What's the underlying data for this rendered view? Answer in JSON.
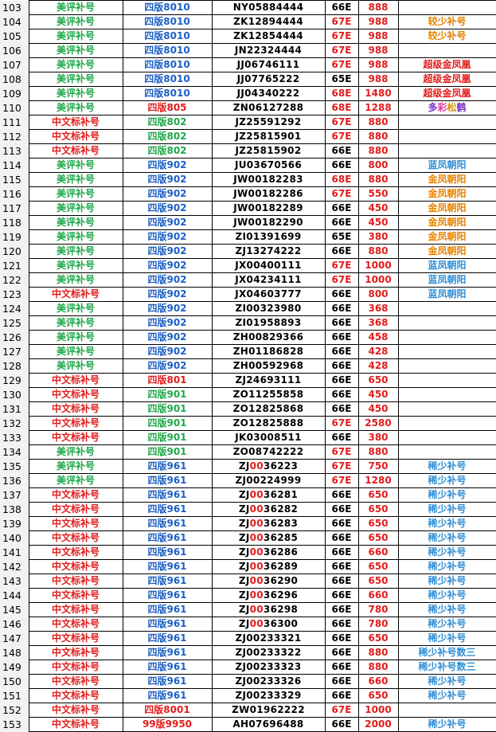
{
  "colors": {
    "green": "#1fa84a",
    "red": "#e31c1c",
    "blue": "#1d5fc4",
    "orange": "#e68200",
    "lightblue": "#2f8fd6"
  },
  "rows": [
    {
      "n": "103",
      "cat": "美评补号",
      "cc": "green",
      "ver": "四版8010",
      "vc": "blue",
      "s1": "NY05884444",
      "s2": "",
      "s3": "",
      "g": "66E",
      "gc": "black",
      "p": "888",
      "note": "",
      "nc": ""
    },
    {
      "n": "104",
      "cat": "美评补号",
      "cc": "green",
      "ver": "四版8010",
      "vc": "blue",
      "s1": "ZK12894444",
      "s2": "",
      "s3": "",
      "g": "67E",
      "gc": "red",
      "p": "988",
      "note": "较少补号",
      "nc": "orange"
    },
    {
      "n": "105",
      "cat": "美评补号",
      "cc": "green",
      "ver": "四版8010",
      "vc": "blue",
      "s1": "ZK12854444",
      "s2": "",
      "s3": "",
      "g": "67E",
      "gc": "red",
      "p": "988",
      "note": "较少补号",
      "nc": "orange"
    },
    {
      "n": "106",
      "cat": "美评补号",
      "cc": "green",
      "ver": "四版8010",
      "vc": "blue",
      "s1": "JN22324444",
      "s2": "",
      "s3": "",
      "g": "67E",
      "gc": "red",
      "p": "988",
      "note": "",
      "nc": ""
    },
    {
      "n": "107",
      "cat": "美评补号",
      "cc": "green",
      "ver": "四版8010",
      "vc": "blue",
      "s1": "JJ06746111",
      "s2": "",
      "s3": "",
      "g": "67E",
      "gc": "red",
      "p": "988",
      "note": "超级金凤凰",
      "nc": "red"
    },
    {
      "n": "108",
      "cat": "美评补号",
      "cc": "green",
      "ver": "四版8010",
      "vc": "blue",
      "s1": "JJ07765222",
      "s2": "",
      "s3": "",
      "g": "65E",
      "gc": "black",
      "p": "988",
      "note": "超级金凤凰",
      "nc": "red"
    },
    {
      "n": "109",
      "cat": "美评补号",
      "cc": "green",
      "ver": "四版8010",
      "vc": "blue",
      "s1": "JJ04340222",
      "s2": "",
      "s3": "",
      "g": "68E",
      "gc": "red",
      "p": "1480",
      "note": "超级金凤凰",
      "nc": "red"
    },
    {
      "n": "110",
      "cat": "美评补号",
      "cc": "green",
      "ver": "四版805",
      "vc": "red",
      "s1": "ZN06127288",
      "s2": "",
      "s3": "",
      "g": "68E",
      "gc": "red",
      "p": "1288",
      "note": "多彩松鹤",
      "nc": "multi"
    },
    {
      "n": "111",
      "cat": "中文标补号",
      "cc": "red",
      "ver": "四版802",
      "vc": "green",
      "s1": "JZ25591292",
      "s2": "",
      "s3": "",
      "g": "67E",
      "gc": "red",
      "p": "880",
      "note": "",
      "nc": ""
    },
    {
      "n": "112",
      "cat": "中文标补号",
      "cc": "red",
      "ver": "四版802",
      "vc": "green",
      "s1": "JZ25815901",
      "s2": "",
      "s3": "",
      "g": "67E",
      "gc": "red",
      "p": "880",
      "note": "",
      "nc": ""
    },
    {
      "n": "113",
      "cat": "中文标补号",
      "cc": "red",
      "ver": "四版802",
      "vc": "green",
      "s1": "JZ25815902",
      "s2": "",
      "s3": "",
      "g": "66E",
      "gc": "black",
      "p": "880",
      "note": "",
      "nc": ""
    },
    {
      "n": "114",
      "cat": "美评补号",
      "cc": "green",
      "ver": "四版902",
      "vc": "blue",
      "s1": "JU03670566",
      "s2": "",
      "s3": "",
      "g": "66E",
      "gc": "black",
      "p": "800",
      "note": "蓝凤朝阳",
      "nc": "blue"
    },
    {
      "n": "115",
      "cat": "美评补号",
      "cc": "green",
      "ver": "四版902",
      "vc": "blue",
      "s1": "JW00182283",
      "s2": "",
      "s3": "",
      "g": "68E",
      "gc": "red",
      "p": "880",
      "note": "金凤朝阳",
      "nc": "orange"
    },
    {
      "n": "116",
      "cat": "美评补号",
      "cc": "green",
      "ver": "四版902",
      "vc": "blue",
      "s1": "JW00182286",
      "s2": "",
      "s3": "",
      "g": "67E",
      "gc": "red",
      "p": "550",
      "note": "金凤朝阳",
      "nc": "orange"
    },
    {
      "n": "117",
      "cat": "美评补号",
      "cc": "green",
      "ver": "四版902",
      "vc": "blue",
      "s1": "JW00182289",
      "s2": "",
      "s3": "",
      "g": "66E",
      "gc": "black",
      "p": "450",
      "note": "金凤朝阳",
      "nc": "orange"
    },
    {
      "n": "118",
      "cat": "美评补号",
      "cc": "green",
      "ver": "四版902",
      "vc": "blue",
      "s1": "JW00182290",
      "s2": "",
      "s3": "",
      "g": "66E",
      "gc": "black",
      "p": "450",
      "note": "金凤朝阳",
      "nc": "orange"
    },
    {
      "n": "119",
      "cat": "美评补号",
      "cc": "green",
      "ver": "四版902",
      "vc": "blue",
      "s1": "ZI01391699",
      "s2": "",
      "s3": "",
      "g": "65E",
      "gc": "black",
      "p": "380",
      "note": "金凤朝阳",
      "nc": "orange"
    },
    {
      "n": "120",
      "cat": "美评补号",
      "cc": "green",
      "ver": "四版902",
      "vc": "blue",
      "s1": "ZJ13274222",
      "s2": "",
      "s3": "",
      "g": "66E",
      "gc": "black",
      "p": "880",
      "note": "金凤朝阳",
      "nc": "orange"
    },
    {
      "n": "121",
      "cat": "美评补号",
      "cc": "green",
      "ver": "四版902",
      "vc": "blue",
      "s1": "JX00400111",
      "s2": "",
      "s3": "",
      "g": "67E",
      "gc": "red",
      "p": "1000",
      "note": "蓝凤朝阳",
      "nc": "blue"
    },
    {
      "n": "122",
      "cat": "美评补号",
      "cc": "green",
      "ver": "四版902",
      "vc": "blue",
      "s1": "JX04234111",
      "s2": "",
      "s3": "",
      "g": "67E",
      "gc": "red",
      "p": "1000",
      "note": "蓝凤朝阳",
      "nc": "blue"
    },
    {
      "n": "123",
      "cat": "中文标补号",
      "cc": "red",
      "ver": "四版902",
      "vc": "blue",
      "s1": "JX04603777",
      "s2": "",
      "s3": "",
      "g": "66E",
      "gc": "black",
      "p": "800",
      "note": "蓝凤朝阳",
      "nc": "blue"
    },
    {
      "n": "124",
      "cat": "美评补号",
      "cc": "green",
      "ver": "四版902",
      "vc": "blue",
      "s1": "ZI00323980",
      "s2": "",
      "s3": "",
      "g": "66E",
      "gc": "black",
      "p": "368",
      "note": "",
      "nc": ""
    },
    {
      "n": "125",
      "cat": "美评补号",
      "cc": "green",
      "ver": "四版902",
      "vc": "blue",
      "s1": "ZI01958893",
      "s2": "",
      "s3": "",
      "g": "66E",
      "gc": "black",
      "p": "368",
      "note": "",
      "nc": ""
    },
    {
      "n": "126",
      "cat": "美评补号",
      "cc": "green",
      "ver": "四版902",
      "vc": "blue",
      "s1": "ZH00829366",
      "s2": "",
      "s3": "",
      "g": "66E",
      "gc": "black",
      "p": "458",
      "note": "",
      "nc": ""
    },
    {
      "n": "127",
      "cat": "美评补号",
      "cc": "green",
      "ver": "四版902",
      "vc": "blue",
      "s1": "ZH01186828",
      "s2": "",
      "s3": "",
      "g": "66E",
      "gc": "black",
      "p": "428",
      "note": "",
      "nc": ""
    },
    {
      "n": "128",
      "cat": "美评补号",
      "cc": "green",
      "ver": "四版902",
      "vc": "blue",
      "s1": "ZH00592968",
      "s2": "",
      "s3": "",
      "g": "66E",
      "gc": "black",
      "p": "428",
      "note": "",
      "nc": ""
    },
    {
      "n": "129",
      "cat": "中文标补号",
      "cc": "red",
      "ver": "四版801",
      "vc": "red",
      "s1": "ZJ24693111",
      "s2": "",
      "s3": "",
      "g": "66E",
      "gc": "black",
      "p": "650",
      "note": "",
      "nc": ""
    },
    {
      "n": "130",
      "cat": "中文标补号",
      "cc": "red",
      "ver": "四版901",
      "vc": "green",
      "s1": "ZO11255858",
      "s2": "",
      "s3": "",
      "g": "66E",
      "gc": "black",
      "p": "450",
      "note": "",
      "nc": ""
    },
    {
      "n": "131",
      "cat": "中文标补号",
      "cc": "red",
      "ver": "四版901",
      "vc": "green",
      "s1": "ZO12825868",
      "s2": "",
      "s3": "",
      "g": "66E",
      "gc": "black",
      "p": "450",
      "note": "",
      "nc": ""
    },
    {
      "n": "132",
      "cat": "中文标补号",
      "cc": "red",
      "ver": "四版901",
      "vc": "green",
      "s1": "ZO12825888",
      "s2": "",
      "s3": "",
      "g": "67E",
      "gc": "red",
      "p": "2580",
      "note": "",
      "nc": ""
    },
    {
      "n": "133",
      "cat": "中文标补号",
      "cc": "red",
      "ver": "四版901",
      "vc": "green",
      "s1": "JK03008511",
      "s2": "",
      "s3": "",
      "g": "66E",
      "gc": "black",
      "p": "380",
      "note": "",
      "nc": ""
    },
    {
      "n": "134",
      "cat": "美评补号",
      "cc": "green",
      "ver": "四版901",
      "vc": "green",
      "s1": "ZO08742222",
      "s2": "",
      "s3": "",
      "g": "67E",
      "gc": "red",
      "p": "880",
      "note": "",
      "nc": ""
    },
    {
      "n": "135",
      "cat": "美评补号",
      "cc": "green",
      "ver": "四版961",
      "vc": "blue",
      "s1": "ZJ",
      "s2": "00",
      "s3": "36223",
      "g": "67E",
      "gc": "red",
      "p": "750",
      "note": "稀少补号",
      "nc": "blue"
    },
    {
      "n": "136",
      "cat": "美评补号",
      "cc": "green",
      "ver": "四版961",
      "vc": "blue",
      "s1": "ZJ00224999",
      "s2": "",
      "s3": "",
      "g": "67E",
      "gc": "red",
      "p": "1280",
      "note": "稀少补号",
      "nc": "blue"
    },
    {
      "n": "137",
      "cat": "中文标补号",
      "cc": "red",
      "ver": "四版961",
      "vc": "blue",
      "s1": "ZJ",
      "s2": "00",
      "s3": "36281",
      "g": "66E",
      "gc": "black",
      "p": "650",
      "note": "稀少补号",
      "nc": "blue"
    },
    {
      "n": "138",
      "cat": "中文标补号",
      "cc": "red",
      "ver": "四版961",
      "vc": "blue",
      "s1": "ZJ",
      "s2": "00",
      "s3": "36282",
      "g": "66E",
      "gc": "black",
      "p": "650",
      "note": "稀少补号",
      "nc": "blue"
    },
    {
      "n": "139",
      "cat": "中文标补号",
      "cc": "red",
      "ver": "四版961",
      "vc": "blue",
      "s1": "ZJ",
      "s2": "00",
      "s3": "36283",
      "g": "66E",
      "gc": "black",
      "p": "650",
      "note": "稀少补号",
      "nc": "blue"
    },
    {
      "n": "140",
      "cat": "中文标补号",
      "cc": "red",
      "ver": "四版961",
      "vc": "blue",
      "s1": "ZJ",
      "s2": "00",
      "s3": "36285",
      "g": "66E",
      "gc": "black",
      "p": "650",
      "note": "稀少补号",
      "nc": "blue"
    },
    {
      "n": "141",
      "cat": "中文标补号",
      "cc": "red",
      "ver": "四版961",
      "vc": "blue",
      "s1": "ZJ",
      "s2": "00",
      "s3": "36286",
      "g": "66E",
      "gc": "black",
      "p": "660",
      "note": "稀少补号",
      "nc": "blue"
    },
    {
      "n": "142",
      "cat": "中文标补号",
      "cc": "red",
      "ver": "四版961",
      "vc": "blue",
      "s1": "ZJ",
      "s2": "00",
      "s3": "36289",
      "g": "66E",
      "gc": "black",
      "p": "650",
      "note": "稀少补号",
      "nc": "blue"
    },
    {
      "n": "143",
      "cat": "中文标补号",
      "cc": "red",
      "ver": "四版961",
      "vc": "blue",
      "s1": "ZJ",
      "s2": "00",
      "s3": "36290",
      "g": "66E",
      "gc": "black",
      "p": "650",
      "note": "稀少补号",
      "nc": "blue"
    },
    {
      "n": "144",
      "cat": "中文标补号",
      "cc": "red",
      "ver": "四版961",
      "vc": "blue",
      "s1": "ZJ",
      "s2": "00",
      "s3": "36296",
      "g": "66E",
      "gc": "black",
      "p": "660",
      "note": "稀少补号",
      "nc": "blue"
    },
    {
      "n": "145",
      "cat": "中文标补号",
      "cc": "red",
      "ver": "四版961",
      "vc": "blue",
      "s1": "ZJ",
      "s2": "00",
      "s3": "36298",
      "g": "66E",
      "gc": "black",
      "p": "780",
      "note": "稀少补号",
      "nc": "blue"
    },
    {
      "n": "146",
      "cat": "中文标补号",
      "cc": "red",
      "ver": "四版961",
      "vc": "blue",
      "s1": "ZJ",
      "s2": "00",
      "s3": "36300",
      "g": "66E",
      "gc": "black",
      "p": "780",
      "note": "稀少补号",
      "nc": "blue"
    },
    {
      "n": "147",
      "cat": "中文标补号",
      "cc": "red",
      "ver": "四版961",
      "vc": "blue",
      "s1": "ZJ00233321",
      "s2": "",
      "s3": "",
      "g": "66E",
      "gc": "black",
      "p": "650",
      "note": "稀少补号",
      "nc": "blue"
    },
    {
      "n": "148",
      "cat": "中文标补号",
      "cc": "red",
      "ver": "四版961",
      "vc": "blue",
      "s1": "ZJ00233322",
      "s2": "",
      "s3": "",
      "g": "66E",
      "gc": "black",
      "p": "880",
      "note": "稀少补号数三",
      "nc": "blue"
    },
    {
      "n": "149",
      "cat": "中文标补号",
      "cc": "red",
      "ver": "四版961",
      "vc": "blue",
      "s1": "ZJ00233323",
      "s2": "",
      "s3": "",
      "g": "66E",
      "gc": "black",
      "p": "880",
      "note": "稀少补号数三",
      "nc": "blue"
    },
    {
      "n": "150",
      "cat": "中文标补号",
      "cc": "red",
      "ver": "四版961",
      "vc": "blue",
      "s1": "ZJ00233326",
      "s2": "",
      "s3": "",
      "g": "66E",
      "gc": "black",
      "p": "660",
      "note": "稀少补号",
      "nc": "blue"
    },
    {
      "n": "151",
      "cat": "中文标补号",
      "cc": "red",
      "ver": "四版961",
      "vc": "blue",
      "s1": "ZJ00233329",
      "s2": "",
      "s3": "",
      "g": "66E",
      "gc": "black",
      "p": "650",
      "note": "稀少补号",
      "nc": "blue"
    },
    {
      "n": "152",
      "cat": "中文标补号",
      "cc": "red",
      "ver": "四版8001",
      "vc": "red",
      "s1": "ZW01962222",
      "s2": "",
      "s3": "",
      "g": "67E",
      "gc": "red",
      "p": "1000",
      "note": "",
      "nc": ""
    },
    {
      "n": "153",
      "cat": "中文标补号",
      "cc": "red",
      "ver": "99版9950",
      "vc": "red",
      "s1": "AH07696488",
      "s2": "",
      "s3": "",
      "g": "66E",
      "gc": "black",
      "p": "2000",
      "note": "稀少补号",
      "nc": "blue"
    }
  ]
}
